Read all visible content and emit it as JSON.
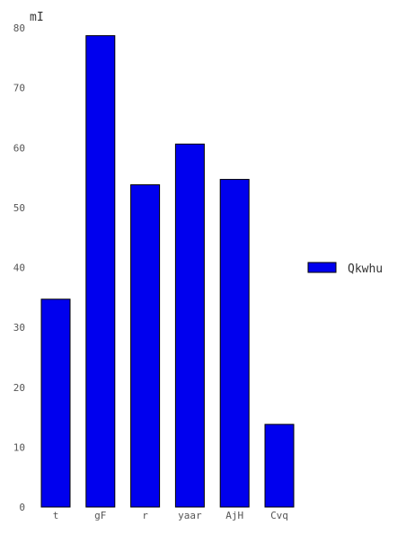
{
  "chart_data": {
    "type": "bar",
    "ylabel": "mI",
    "categories": [
      "t",
      "gF",
      "r",
      "yaar",
      "AjH",
      "Cvq"
    ],
    "yticks": [
      0,
      10,
      20,
      30,
      40,
      50,
      60,
      70,
      80
    ],
    "ylim": [
      0,
      80
    ],
    "series": [
      {
        "name": "Qkwhu",
        "values": [
          34.7,
          78.7,
          53.8,
          60.6,
          54.7,
          13.8
        ]
      }
    ],
    "colors": {
      "bar_fill": "#0000ee",
      "bar_stroke": "#000000"
    },
    "grid": false,
    "legend_position": "right"
  }
}
